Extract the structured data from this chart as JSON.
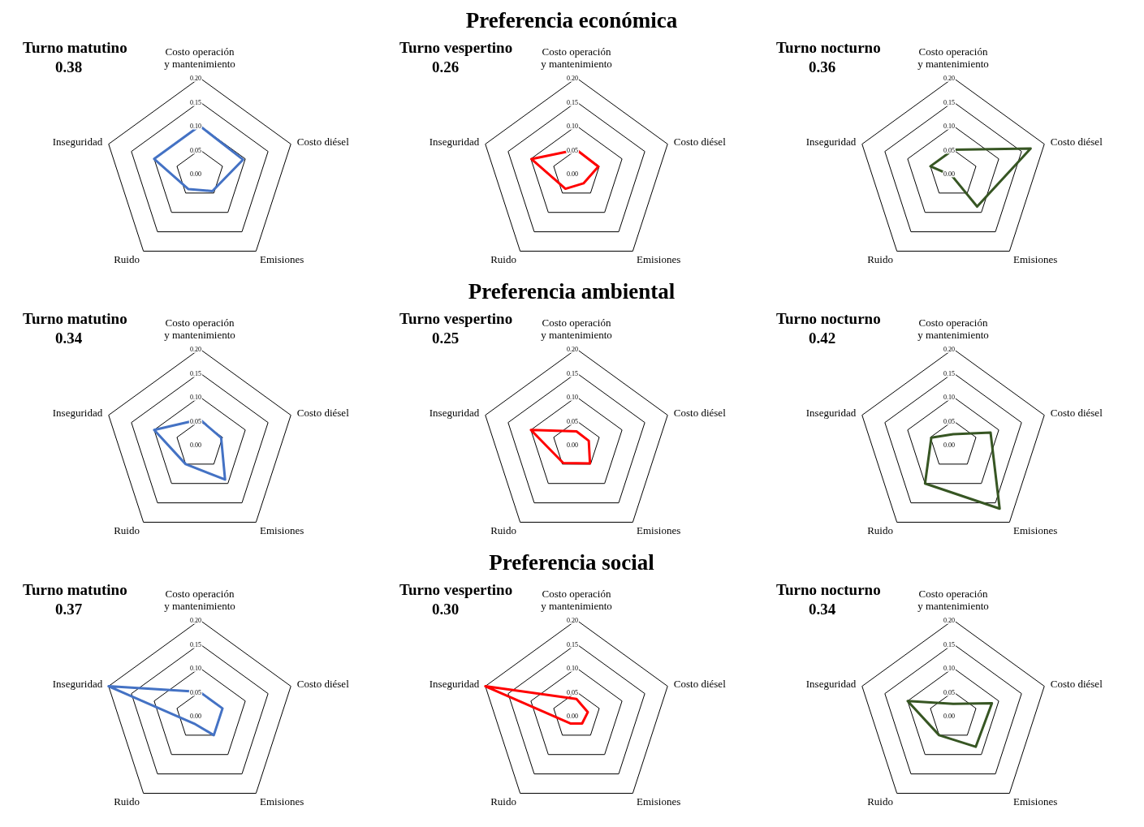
{
  "chart_data": [
    {
      "type": "radar",
      "subtitle": "Turno matutino",
      "annotations": [
        "0.38"
      ],
      "categories": [
        "Costo operación y mantenimiento",
        "Costo diésel",
        "Emisiones",
        "Ruido",
        "Inseguridad"
      ],
      "series": [
        {
          "color": "#4472c4",
          "values": [
            0.1,
            0.095,
            0.045,
            0.04,
            0.1
          ]
        }
      ],
      "ylim": [
        0,
        0.2
      ],
      "yticks": [
        {
          "value": 0,
          "label": "0.00"
        },
        {
          "value": 0.05,
          "label": "0.05"
        },
        {
          "value": 0.1,
          "label": "0.10"
        },
        {
          "value": 0.15,
          "label": "0.15"
        },
        {
          "value": 0.2,
          "label": "0.20"
        }
      ],
      "grid": true
    },
    {
      "type": "radar",
      "title": "Preferencia económica",
      "subtitle": "Turno vespertino",
      "annotations": [
        "0.26"
      ],
      "categories": [
        "Costo operación y mantenimiento",
        "Costo diésel",
        "Emisiones",
        "Ruido",
        "Inseguridad"
      ],
      "series": [
        {
          "color": "#ff0000",
          "values": [
            0.05,
            0.048,
            0.025,
            0.039,
            0.099
          ]
        }
      ],
      "ylim": [
        0,
        0.2
      ],
      "yticks": [
        {
          "value": 0,
          "label": "0.00"
        },
        {
          "value": 0.05,
          "label": "0.05"
        },
        {
          "value": 0.1,
          "label": "0.10"
        },
        {
          "value": 0.15,
          "label": "0.15"
        },
        {
          "value": 0.2,
          "label": "0.20"
        }
      ],
      "grid": true
    },
    {
      "type": "radar",
      "subtitle": "Turno nocturno",
      "annotations": [
        "0.36"
      ],
      "categories": [
        "Costo operación y mantenimiento",
        "Costo diésel",
        "Emisiones",
        "Ruido",
        "Inseguridad"
      ],
      "series": [
        {
          "color": "#375623",
          "values": [
            0.05,
            0.17,
            0.085,
            0.005,
            0.05
          ]
        }
      ],
      "ylim": [
        0,
        0.2
      ],
      "yticks": [
        {
          "value": 0,
          "label": "0.00"
        },
        {
          "value": 0.05,
          "label": "0.05"
        },
        {
          "value": 0.1,
          "label": "0.10"
        },
        {
          "value": 0.15,
          "label": "0.15"
        },
        {
          "value": 0.2,
          "label": "0.20"
        }
      ],
      "grid": true
    },
    {
      "type": "radar",
      "subtitle": "Turno matutino",
      "annotations": [
        "0.34"
      ],
      "categories": [
        "Costo operación y mantenimiento",
        "Costo diésel",
        "Emisiones",
        "Ruido",
        "Inseguridad"
      ],
      "series": [
        {
          "color": "#4472c4",
          "values": [
            0.053,
            0.047,
            0.09,
            0.05,
            0.1
          ]
        }
      ],
      "ylim": [
        0,
        0.2
      ],
      "yticks": [
        {
          "value": 0,
          "label": "0.00"
        },
        {
          "value": 0.05,
          "label": "0.05"
        },
        {
          "value": 0.1,
          "label": "0.10"
        },
        {
          "value": 0.15,
          "label": "0.15"
        },
        {
          "value": 0.2,
          "label": "0.20"
        }
      ],
      "grid": true
    },
    {
      "type": "radar",
      "title": "Preferencia ambiental",
      "subtitle": "Turno vespertino",
      "annotations": [
        "0.25"
      ],
      "categories": [
        "Costo operación y mantenimiento",
        "Costo diésel",
        "Emisiones",
        "Ruido",
        "Inseguridad"
      ],
      "series": [
        {
          "color": "#ff0000",
          "values": [
            0.028,
            0.027,
            0.048,
            0.047,
            0.1
          ]
        }
      ],
      "ylim": [
        0,
        0.2
      ],
      "yticks": [
        {
          "value": 0,
          "label": "0.00"
        },
        {
          "value": 0.05,
          "label": "0.05"
        },
        {
          "value": 0.1,
          "label": "0.10"
        },
        {
          "value": 0.15,
          "label": "0.15"
        },
        {
          "value": 0.2,
          "label": "0.20"
        }
      ],
      "grid": true
    },
    {
      "type": "radar",
      "subtitle": "Turno nocturno",
      "annotations": [
        "0.42"
      ],
      "categories": [
        "Costo operación y mantenimiento",
        "Costo diésel",
        "Emisiones",
        "Ruido",
        "Inseguridad"
      ],
      "series": [
        {
          "color": "#375623",
          "values": [
            0.022,
            0.082,
            0.165,
            0.1,
            0.048
          ]
        }
      ],
      "ylim": [
        0,
        0.2
      ],
      "yticks": [
        {
          "value": 0,
          "label": "0.00"
        },
        {
          "value": 0.05,
          "label": "0.05"
        },
        {
          "value": 0.1,
          "label": "0.10"
        },
        {
          "value": 0.15,
          "label": "0.15"
        },
        {
          "value": 0.2,
          "label": "0.20"
        }
      ],
      "grid": true
    },
    {
      "type": "radar",
      "subtitle": "Turno matutino",
      "annotations": [
        "0.37"
      ],
      "categories": [
        "Costo operación y mantenimiento",
        "Costo diésel",
        "Emisiones",
        "Ruido",
        "Inseguridad"
      ],
      "series": [
        {
          "color": "#4472c4",
          "values": [
            0.05,
            0.05,
            0.05,
            0.02,
            0.2
          ]
        }
      ],
      "ylim": [
        0,
        0.2
      ],
      "yticks": [
        {
          "value": 0,
          "label": "0.00"
        },
        {
          "value": 0.05,
          "label": "0.05"
        },
        {
          "value": 0.1,
          "label": "0.10"
        },
        {
          "value": 0.15,
          "label": "0.15"
        },
        {
          "value": 0.2,
          "label": "0.20"
        }
      ],
      "grid": true
    },
    {
      "type": "radar",
      "title": "Preferencia social",
      "subtitle": "Turno vespertino",
      "annotations": [
        "0.30"
      ],
      "categories": [
        "Costo operación y mantenimiento",
        "Costo diésel",
        "Emisiones",
        "Ruido",
        "Inseguridad"
      ],
      "series": [
        {
          "color": "#ff0000",
          "values": [
            0.035,
            0.025,
            0.02,
            0.02,
            0.2
          ]
        }
      ],
      "ylim": [
        0,
        0.2
      ],
      "yticks": [
        {
          "value": 0,
          "label": "0.00"
        },
        {
          "value": 0.05,
          "label": "0.05"
        },
        {
          "value": 0.1,
          "label": "0.10"
        },
        {
          "value": 0.15,
          "label": "0.15"
        },
        {
          "value": 0.2,
          "label": "0.20"
        }
      ],
      "grid": true
    },
    {
      "type": "radar",
      "subtitle": "Turno nocturno",
      "annotations": [
        "0.34"
      ],
      "categories": [
        "Costo operación y mantenimiento",
        "Costo diésel",
        "Emisiones",
        "Ruido",
        "Inseguridad"
      ],
      "series": [
        {
          "color": "#375623",
          "values": [
            0.025,
            0.085,
            0.08,
            0.05,
            0.1
          ]
        }
      ],
      "ylim": [
        0,
        0.2
      ],
      "yticks": [
        {
          "value": 0,
          "label": "0.00"
        },
        {
          "value": 0.05,
          "label": "0.05"
        },
        {
          "value": 0.1,
          "label": "0.10"
        },
        {
          "value": 0.15,
          "label": "0.15"
        },
        {
          "value": 0.2,
          "label": "0.20"
        }
      ],
      "grid": true
    }
  ]
}
